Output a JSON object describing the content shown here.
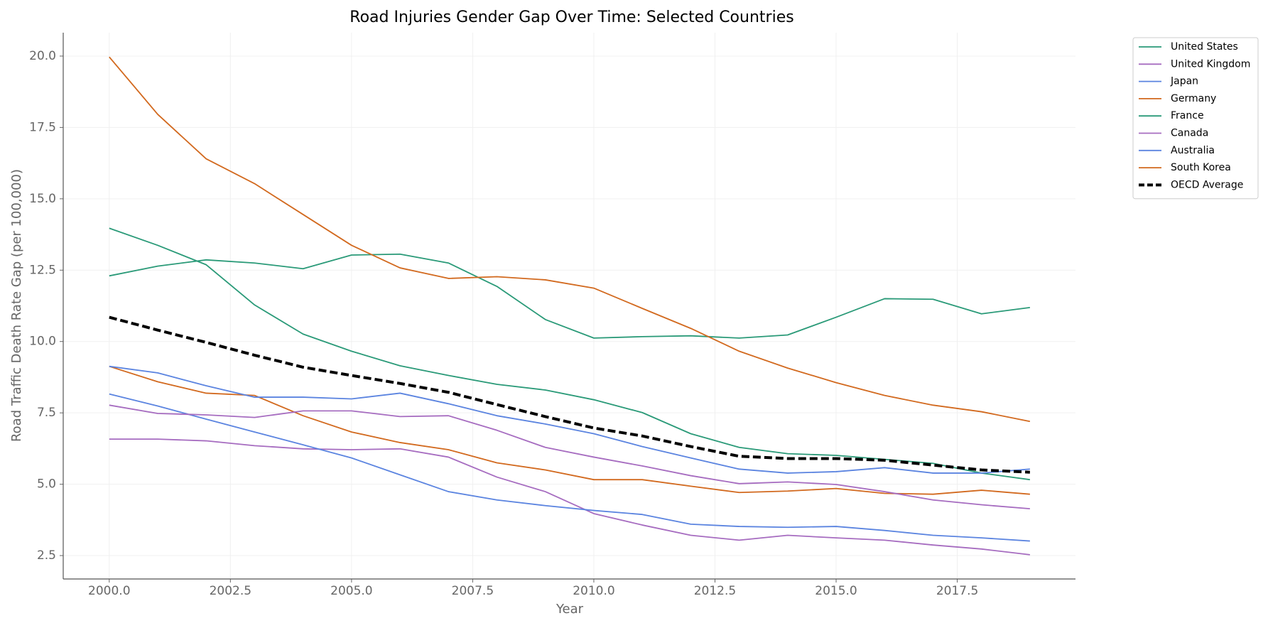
{
  "chart_data": {
    "type": "line",
    "title": "Road Injuries Gender Gap Over Time: Selected Countries",
    "x_label": "Year",
    "y_label": "Road Traffic Death Rate Gap (per 100,000)",
    "x": [
      2000,
      2001,
      2002,
      2003,
      2004,
      2005,
      2006,
      2007,
      2008,
      2009,
      2010,
      2011,
      2012,
      2013,
      2014,
      2015,
      2016,
      2017,
      2018,
      2019
    ],
    "xlim": [
      1999.05,
      2019.94
    ],
    "ylim": [
      1.68,
      20.82
    ],
    "xticks": [
      {
        "value": 2000,
        "label": "2000.0"
      },
      {
        "value": 2002.5,
        "label": "2002.5"
      },
      {
        "value": 2005,
        "label": "2005.0"
      },
      {
        "value": 2007.5,
        "label": "2007.5"
      },
      {
        "value": 2010,
        "label": "2010.0"
      },
      {
        "value": 2012.5,
        "label": "2012.5"
      },
      {
        "value": 2015,
        "label": "2015.0"
      },
      {
        "value": 2017.5,
        "label": "2017.5"
      }
    ],
    "yticks": [
      2.5,
      {
        "value": 5,
        "label": "5.0"
      },
      7.5,
      {
        "value": 10,
        "label": "10.0"
      },
      12.5,
      {
        "value": 15,
        "label": "15.0"
      },
      17.5,
      {
        "value": 20,
        "label": "20.0"
      }
    ],
    "grid": true,
    "legend": "right",
    "series": [
      {
        "name": "United States",
        "color": "#2a9a78",
        "values": [
          12.3,
          12.64,
          12.86,
          12.75,
          12.55,
          13.03,
          13.06,
          12.75,
          11.93,
          10.77,
          10.12,
          10.17,
          10.2,
          10.12,
          10.23,
          10.85,
          11.5,
          11.48,
          10.97,
          11.19
        ]
      },
      {
        "name": "United Kingdom",
        "color": "#a66cc0",
        "values": [
          6.58,
          6.58,
          6.52,
          6.35,
          6.24,
          6.21,
          6.24,
          5.95,
          5.25,
          4.74,
          3.97,
          3.57,
          3.21,
          3.04,
          3.21,
          3.12,
          3.04,
          2.87,
          2.73,
          2.53
        ]
      },
      {
        "name": "Japan",
        "color": "#5b84e0",
        "values": [
          8.16,
          7.74,
          7.28,
          6.83,
          6.38,
          5.92,
          5.33,
          4.74,
          4.45,
          4.25,
          4.08,
          3.94,
          3.6,
          3.52,
          3.49,
          3.52,
          3.38,
          3.21,
          3.12,
          3.01
        ]
      },
      {
        "name": "Germany",
        "color": "#d2691e",
        "values": [
          9.13,
          8.59,
          8.19,
          8.11,
          7.4,
          6.83,
          6.46,
          6.21,
          5.75,
          5.5,
          5.16,
          5.16,
          4.93,
          4.71,
          4.76,
          4.85,
          4.68,
          4.65,
          4.79,
          4.65
        ]
      },
      {
        "name": "France",
        "color": "#2a9a78",
        "values": [
          13.97,
          13.37,
          12.69,
          11.28,
          10.26,
          9.66,
          9.15,
          8.81,
          8.5,
          8.3,
          7.96,
          7.51,
          6.77,
          6.29,
          6.07,
          6.01,
          5.87,
          5.73,
          5.39,
          5.16
        ]
      },
      {
        "name": "Canada",
        "color": "#a66cc0",
        "values": [
          7.77,
          7.48,
          7.43,
          7.34,
          7.57,
          7.57,
          7.37,
          7.4,
          6.89,
          6.29,
          5.95,
          5.64,
          5.3,
          5.02,
          5.08,
          4.99,
          4.74,
          4.45,
          4.28,
          4.14
        ]
      },
      {
        "name": "Australia",
        "color": "#5b84e0",
        "values": [
          9.13,
          8.9,
          8.45,
          8.05,
          8.05,
          7.99,
          8.19,
          7.82,
          7.4,
          7.11,
          6.77,
          6.32,
          5.92,
          5.53,
          5.39,
          5.44,
          5.58,
          5.39,
          5.39,
          5.53
        ]
      },
      {
        "name": "South Korea",
        "color": "#d2691e",
        "values": [
          19.97,
          17.96,
          16.4,
          15.53,
          14.45,
          13.37,
          12.58,
          12.21,
          12.27,
          12.16,
          11.87,
          11.16,
          10.46,
          9.66,
          9.07,
          8.56,
          8.11,
          7.77,
          7.54,
          7.2
        ]
      },
      {
        "name": "OECD Average",
        "color": "#000000",
        "linestyle": "dashed",
        "values": [
          10.85,
          10.4,
          9.97,
          9.52,
          9.1,
          8.81,
          8.53,
          8.22,
          7.79,
          7.37,
          6.97,
          6.69,
          6.32,
          5.98,
          5.9,
          5.9,
          5.84,
          5.67,
          5.5,
          5.42
        ]
      }
    ]
  }
}
